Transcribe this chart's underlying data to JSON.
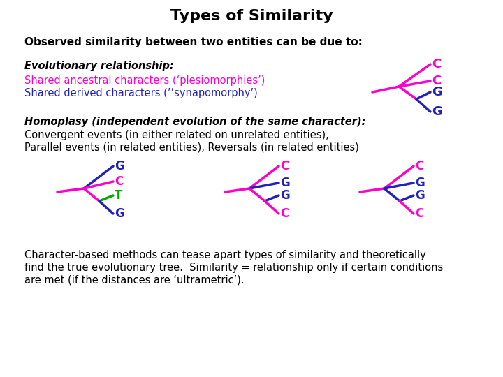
{
  "title": "Types of Similarity",
  "title_fontsize": 16,
  "subtitle": "Observed similarity between two entities can be due to:",
  "subtitle_fontsize": 11,
  "bg_color": "#ffffff",
  "pink": "#FF00CC",
  "blue": "#2222BB",
  "green": "#00AA00",
  "black": "#000000",
  "evo_line1": "Evolutionary relationship:",
  "evo_line2": "Shared ancestral characters (‘plesiomorphies’)",
  "evo_line3": "Shared derived characters (’’synapomorphy’)",
  "homo_line1": "Homoplasy (independent evolution of the same character):",
  "homo_line2": "Convergent events (in either related on unrelated entities),",
  "homo_line3": "Parallel events (in related entities), Reversals (in related entities)",
  "footer1": "Character-based methods can tease apart types of similarity and theoretically",
  "footer2": "find the true evolutionary tree.  Similarity = relationship only if certain conditions",
  "footer3": "are met (if the distances are ‘ultrametric’)."
}
